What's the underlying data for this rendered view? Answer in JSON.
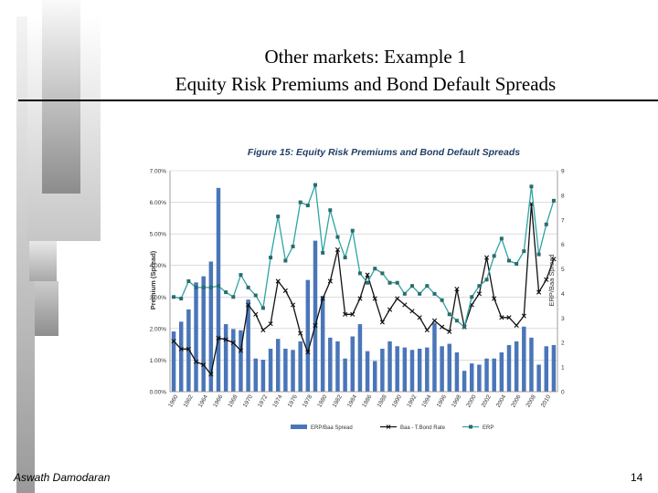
{
  "slide": {
    "title_line1": "Other markets: Example 1",
    "title_line2": "Equity Risk Premiums and Bond Default Spreads",
    "author": "Aswath Damodaran",
    "page_number": "14"
  },
  "colors": {
    "bars": "#4a76b8",
    "baa_line": "#111111",
    "erp_line": "#2fa3a3",
    "title": "#1f3f66"
  },
  "chart_data": {
    "type": "bar-line-combo",
    "title": "Figure 15: Equity Risk Premiums  and Bond Default Spreads",
    "left_axis_label": "Premium (Spread)",
    "right_axis_label": "ERP/Baa Spread",
    "left_ylim": [
      0,
      7
    ],
    "right_ylim": [
      0,
      9
    ],
    "left_ticks": [
      "0.00%",
      "1.00%",
      "2.00%",
      "3.00%",
      "4.00%",
      "5.00%",
      "6.00%",
      "7.00%"
    ],
    "right_ticks": [
      "0.00",
      "1.00",
      "2.00",
      "3.00",
      "4.00",
      "5.00",
      "6.00",
      "7.00",
      "8.00",
      "9.00"
    ],
    "x_tick_labels": [
      "1960",
      "1962",
      "1964",
      "1966",
      "1968",
      "1970",
      "1972",
      "1974",
      "1976",
      "1978",
      "1980",
      "1982",
      "1984",
      "1986",
      "1988",
      "1990",
      "1992",
      "1994",
      "1996",
      "1998",
      "2000",
      "2002",
      "2004",
      "2006",
      "2008",
      "2010"
    ],
    "legend": [
      "ERP/Baa Spread",
      "Baa - T.Bond Rate",
      "ERP"
    ],
    "years": [
      1960,
      1961,
      1962,
      1963,
      1964,
      1965,
      1966,
      1967,
      1968,
      1969,
      1970,
      1971,
      1972,
      1973,
      1974,
      1975,
      1976,
      1977,
      1978,
      1979,
      1980,
      1981,
      1982,
      1983,
      1984,
      1985,
      1986,
      1987,
      1988,
      1989,
      1990,
      1991,
      1992,
      1993,
      1994,
      1995,
      1996,
      1997,
      1998,
      1999,
      2000,
      2001,
      2002,
      2003,
      2004,
      2005,
      2006,
      2007,
      2008,
      2009,
      2010,
      2011
    ],
    "series": [
      {
        "name": "ERP/Baa Spread",
        "kind": "bar",
        "axis": "right",
        "values": [
          2.45,
          2.85,
          3.35,
          4.45,
          4.7,
          5.3,
          8.3,
          2.75,
          2.55,
          2.5,
          3.75,
          1.35,
          1.3,
          1.75,
          2.15,
          1.75,
          1.7,
          2.05,
          4.55,
          6.15,
          3.9,
          2.2,
          2.05,
          1.35,
          2.25,
          2.75,
          1.65,
          1.25,
          1.75,
          2.05,
          1.85,
          1.8,
          1.7,
          1.75,
          1.8,
          2.8,
          1.85,
          1.95,
          1.6,
          0.85,
          1.15,
          1.1,
          1.35,
          1.35,
          1.6,
          1.9,
          2.05,
          2.65,
          2.2,
          1.1,
          1.85,
          1.9
        ]
      },
      {
        "name": "Baa - T.Bond Rate",
        "kind": "line",
        "axis": "left",
        "values": [
          1.6,
          1.35,
          1.35,
          0.95,
          0.85,
          0.55,
          1.7,
          1.65,
          1.55,
          1.3,
          2.75,
          2.45,
          1.95,
          2.15,
          3.5,
          3.2,
          2.75,
          1.85,
          1.25,
          2.1,
          2.95,
          3.5,
          4.5,
          2.45,
          2.45,
          2.95,
          3.7,
          2.95,
          2.2,
          2.6,
          2.95,
          2.75,
          2.55,
          2.35,
          1.95,
          2.25,
          2.05,
          1.9,
          3.25,
          2.05,
          2.75,
          3.1,
          4.25,
          2.95,
          2.35,
          2.35,
          2.1,
          2.4,
          5.95,
          3.15,
          3.55,
          4.2
        ]
      },
      {
        "name": "ERP",
        "kind": "line",
        "axis": "left",
        "values": [
          3.0,
          2.95,
          3.5,
          3.3,
          3.3,
          3.3,
          3.35,
          3.15,
          3.0,
          3.7,
          3.3,
          3.05,
          2.65,
          4.25,
          5.55,
          4.15,
          4.6,
          6.0,
          5.9,
          6.55,
          4.4,
          5.75,
          4.9,
          4.25,
          5.1,
          3.75,
          3.45,
          3.9,
          3.75,
          3.45,
          3.45,
          3.1,
          3.35,
          3.1,
          3.35,
          3.1,
          2.9,
          2.45,
          2.25,
          2.05,
          3.0,
          3.35,
          3.55,
          4.3,
          4.85,
          4.15,
          4.05,
          4.45,
          6.5,
          4.35,
          5.3,
          6.05
        ]
      }
    ]
  }
}
